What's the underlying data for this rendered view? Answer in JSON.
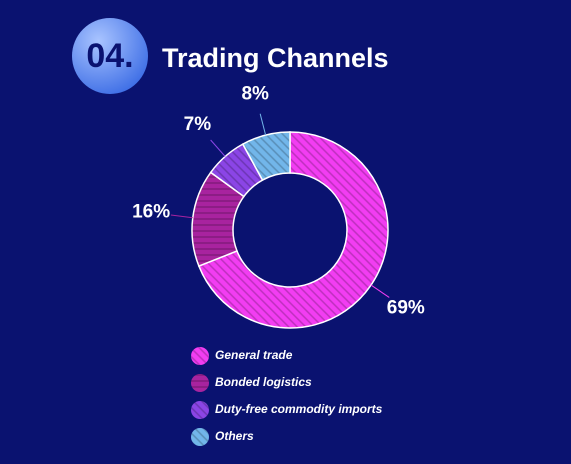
{
  "header": {
    "badge": "04."
  },
  "chart_data": {
    "type": "pie",
    "title": "Trading Channels",
    "categories": [
      "General trade",
      "Bonded logistics",
      "Duty-free commodity imports",
      "Others"
    ],
    "values": [
      69,
      16,
      7,
      8
    ],
    "value_labels": [
      "69%",
      "16%",
      "7%",
      "8%"
    ],
    "colors": [
      "#f23df2",
      "#a8239f",
      "#8b45e6",
      "#72b6ea"
    ]
  }
}
